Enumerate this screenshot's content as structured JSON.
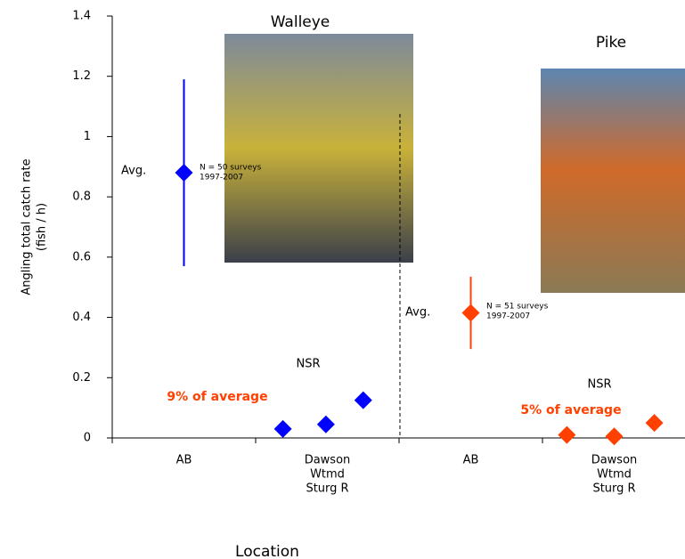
{
  "chart_data": {
    "type": "scatter",
    "y_label": [
      "Angling total catch rate",
      "(fish / h)"
    ],
    "x_label": "Location",
    "categories": [
      [
        "AB"
      ],
      [
        "Dawson",
        "Wtmd",
        "Sturg R"
      ],
      [
        "AB"
      ],
      [
        "Dawson",
        "Wtmd",
        "Sturg R"
      ]
    ],
    "xlim": [
      0,
      4
    ],
    "xticks": [
      0,
      1,
      2,
      3,
      4
    ],
    "ylim": [
      0,
      1.4
    ],
    "yticks": [
      0,
      0.2,
      0.4,
      0.6,
      0.8,
      1,
      1.2,
      1.4
    ],
    "series": [
      {
        "color": "#0000ff",
        "x": [
          0.5
        ],
        "values": [
          0.88
        ],
        "errors": [
          0.31
        ]
      },
      {
        "color": "#0000ff",
        "x": [
          1.19,
          1.49,
          1.75
        ],
        "values": [
          0.03,
          0.045,
          0.125
        ]
      },
      {
        "color": "#ff4000",
        "x": [
          2.5
        ],
        "values": [
          0.415
        ],
        "errors": [
          0.12
        ]
      },
      {
        "color": "#ff4000",
        "x": [
          3.17,
          3.5,
          3.78
        ],
        "values": [
          0.01,
          0.005,
          0.05
        ]
      }
    ],
    "annotations": {
      "walleye_title": "Walleye",
      "pike_title": "Pike",
      "avg_walleye": "Avg.",
      "avg_pike": "Avg.",
      "walleye_n": [
        "N = 50 surveys",
        "1997-2007"
      ],
      "pike_n": [
        "N = 51 surveys",
        "1997-2007"
      ],
      "nsr_walleye": "NSR",
      "nsr_pike": "NSR",
      "pct_walleye": "9% of average",
      "pct_pike": "5% of average"
    }
  }
}
